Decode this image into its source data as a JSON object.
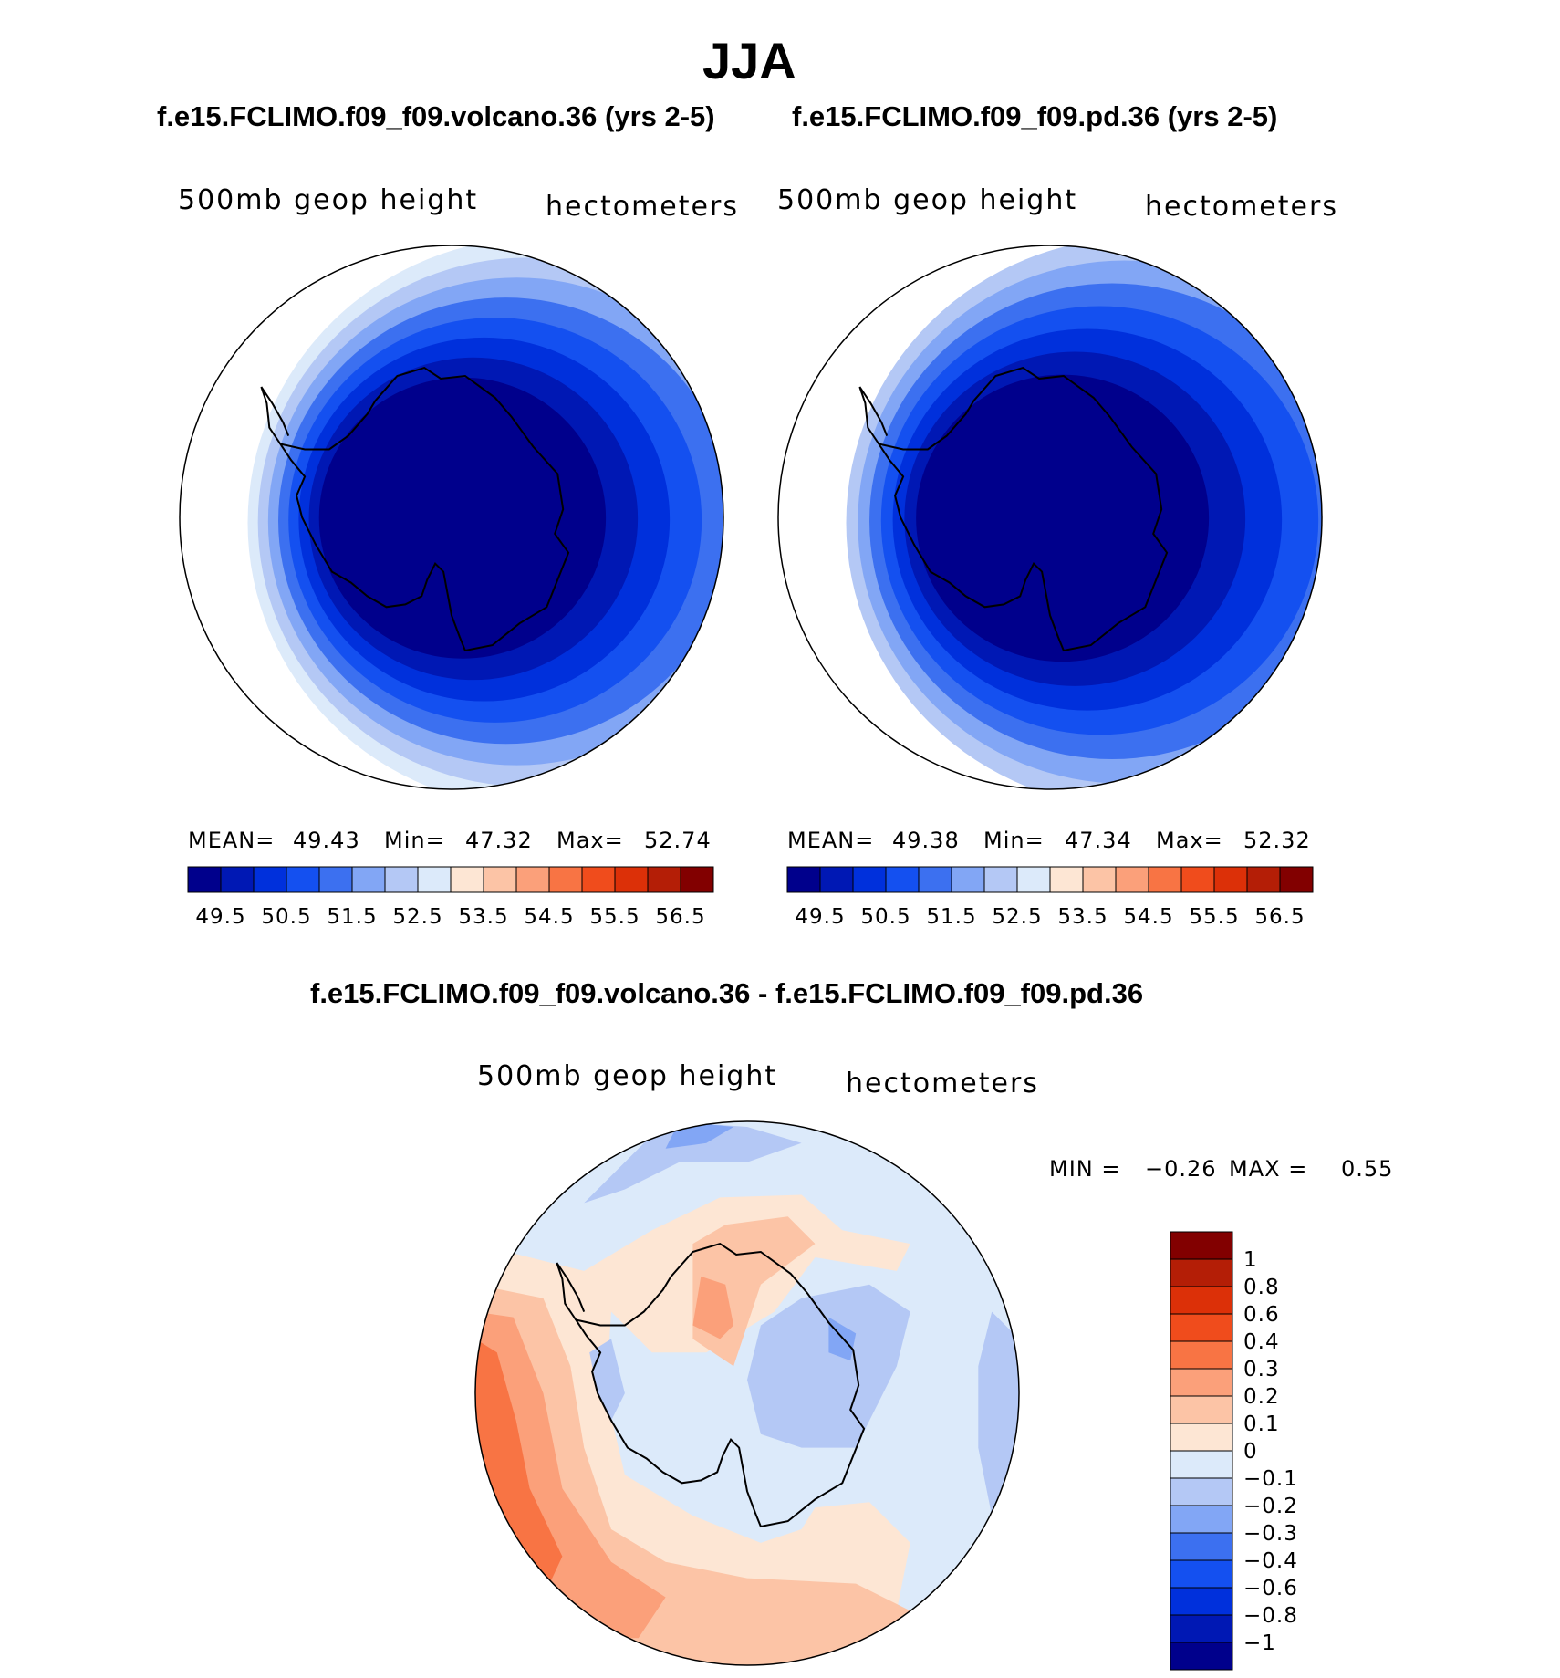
{
  "figure_title": "JJA",
  "chart_data": [
    {
      "type": "heatmap",
      "projection": "south polar stereographic",
      "title": "f.e15.FCLIMO.f09_f09.volcano.36 (yrs 2-5)",
      "variable_label": "500mb geop height",
      "units_label": "hectometers",
      "stats": {
        "mean_label": "MEAN=",
        "mean": "49.43",
        "min_label": "Min=",
        "min": "47.32",
        "max_label": "Max=",
        "max": "52.74"
      },
      "colorbar": {
        "orientation": "horizontal",
        "levels": [
          49.5,
          50,
          50.5,
          51,
          51.5,
          52,
          52.5,
          53,
          53.5,
          54,
          54.5,
          55,
          55.5,
          56,
          56.5
        ],
        "tick_labels": [
          "49.5",
          "50.5",
          "51.5",
          "52.5",
          "53.5",
          "54.5",
          "55.5",
          "56.5"
        ],
        "colors": [
          "#00008c",
          "#0018b4",
          "#0030dc",
          "#1450f0",
          "#3c70f0",
          "#82a6f5",
          "#b4c8f5",
          "#dceafa",
          "#fde6d4",
          "#fcc4a6",
          "#fba07a",
          "#f87444",
          "#f04c1c",
          "#dc3008",
          "#b41e06",
          "#820000"
        ]
      },
      "contour_bands": [
        {
          "level_min": 52.5,
          "level_max": 53.0
        },
        {
          "level_min": 52.0,
          "level_max": 52.5
        },
        {
          "level_min": 51.5,
          "level_max": 52.0
        },
        {
          "level_min": 51.0,
          "level_max": 51.5
        },
        {
          "level_min": 50.5,
          "level_max": 51.0
        },
        {
          "level_min": 50.0,
          "level_max": 50.5
        },
        {
          "level_min": 49.5,
          "level_max": 50.0
        },
        {
          "level_min": 47.32,
          "level_max": 49.5
        }
      ]
    },
    {
      "type": "heatmap",
      "projection": "south polar stereographic",
      "title": "f.e15.FCLIMO.f09_f09.pd.36 (yrs 2-5)",
      "variable_label": "500mb geop height",
      "units_label": "hectometers",
      "stats": {
        "mean_label": "MEAN=",
        "mean": "49.38",
        "min_label": "Min=",
        "min": "47.34",
        "max_label": "Max=",
        "max": "52.32"
      },
      "colorbar": {
        "orientation": "horizontal",
        "levels": [
          49.5,
          50,
          50.5,
          51,
          51.5,
          52,
          52.5,
          53,
          53.5,
          54,
          54.5,
          55,
          55.5,
          56,
          56.5
        ],
        "tick_labels": [
          "49.5",
          "50.5",
          "51.5",
          "52.5",
          "53.5",
          "54.5",
          "55.5",
          "56.5"
        ],
        "colors": [
          "#00008c",
          "#0018b4",
          "#0030dc",
          "#1450f0",
          "#3c70f0",
          "#82a6f5",
          "#b4c8f5",
          "#dceafa",
          "#fde6d4",
          "#fcc4a6",
          "#fba07a",
          "#f87444",
          "#f04c1c",
          "#dc3008",
          "#b41e06",
          "#820000"
        ]
      },
      "contour_bands": [
        {
          "level_min": 52.0,
          "level_max": 52.5
        },
        {
          "level_min": 51.5,
          "level_max": 52.0
        },
        {
          "level_min": 51.0,
          "level_max": 51.5
        },
        {
          "level_min": 50.5,
          "level_max": 51.0
        },
        {
          "level_min": 50.0,
          "level_max": 50.5
        },
        {
          "level_min": 49.5,
          "level_max": 50.0
        },
        {
          "level_min": 47.34,
          "level_max": 49.5
        }
      ]
    },
    {
      "type": "heatmap",
      "projection": "south polar stereographic",
      "title": "f.e15.FCLIMO.f09_f09.volcano.36 - f.e15.FCLIMO.f09_f09.pd.36",
      "variable_label": "500mb geop height",
      "units_label": "hectometers",
      "stats": {
        "min_label": "MIN =",
        "min": "−0.26",
        "max_label": "MAX =",
        "max": "0.55"
      },
      "colorbar": {
        "orientation": "vertical",
        "levels": [
          1,
          0.8,
          0.6,
          0.4,
          0.3,
          0.2,
          0.1,
          0,
          -0.1,
          -0.2,
          -0.3,
          -0.4,
          -0.6,
          -0.8,
          -1
        ],
        "tick_labels": [
          "1",
          "0.8",
          "0.6",
          "0.4",
          "0.3",
          "0.2",
          "0.1",
          "0",
          "−0.1",
          "−0.2",
          "−0.3",
          "−0.4",
          "−0.6",
          "−0.8",
          "−1"
        ],
        "colors_top_to_bottom": [
          "#820000",
          "#b41e06",
          "#dc3008",
          "#f04c1c",
          "#f87444",
          "#fba07a",
          "#fcc4a6",
          "#fde6d4",
          "#dceafa",
          "#b4c8f5",
          "#82a6f5",
          "#3c70f0",
          "#1450f0",
          "#0030dc",
          "#0018b4",
          "#00008c"
        ]
      }
    }
  ]
}
